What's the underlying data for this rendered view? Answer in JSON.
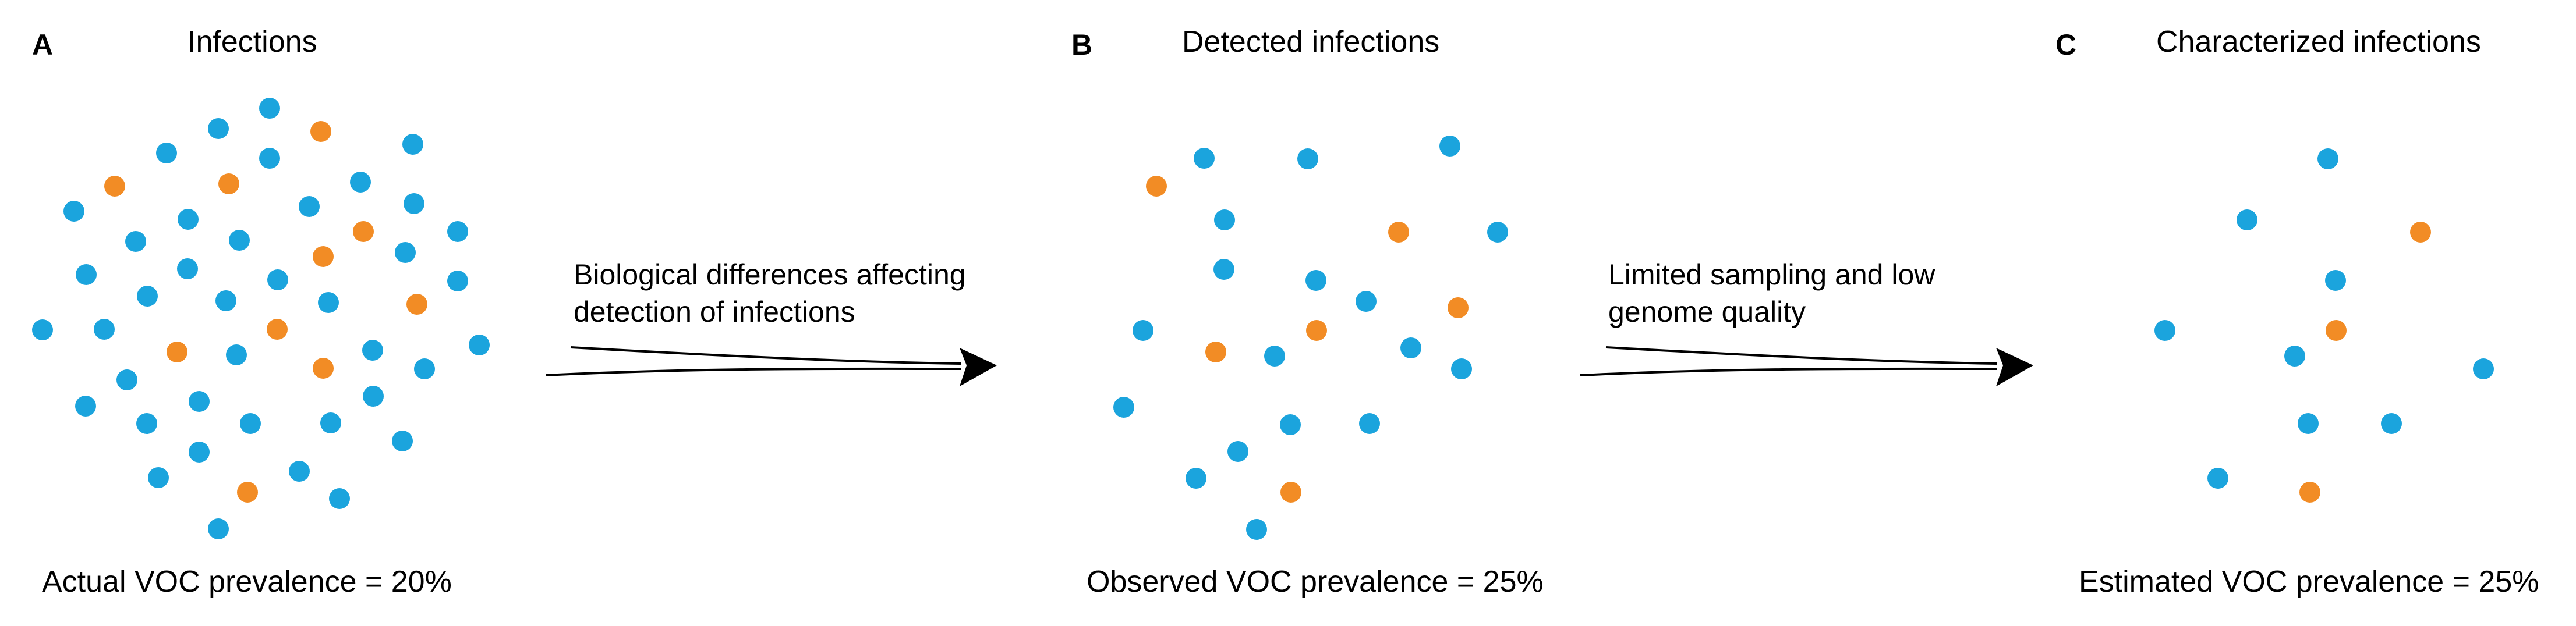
{
  "colors": {
    "non_voc": "#1BA4DD",
    "voc": "#F28C25",
    "arrow": "#000000"
  },
  "panels": [
    {
      "letter": "A",
      "title": "Infections",
      "prevalence": "Actual VOC prevalence = 20%"
    },
    {
      "letter": "B",
      "title": "Detected infections",
      "prevalence": "Observed VOC prevalence = 25%"
    },
    {
      "letter": "C",
      "title": "Characterized infections",
      "prevalence": "Estimated VOC prevalence = 25%"
    }
  ],
  "arrows": [
    {
      "label_line1": "Biological differences affecting",
      "label_line2": "detection of infections"
    },
    {
      "label_line1": "Limited sampling and low",
      "label_line2": "genome quality"
    }
  ]
}
